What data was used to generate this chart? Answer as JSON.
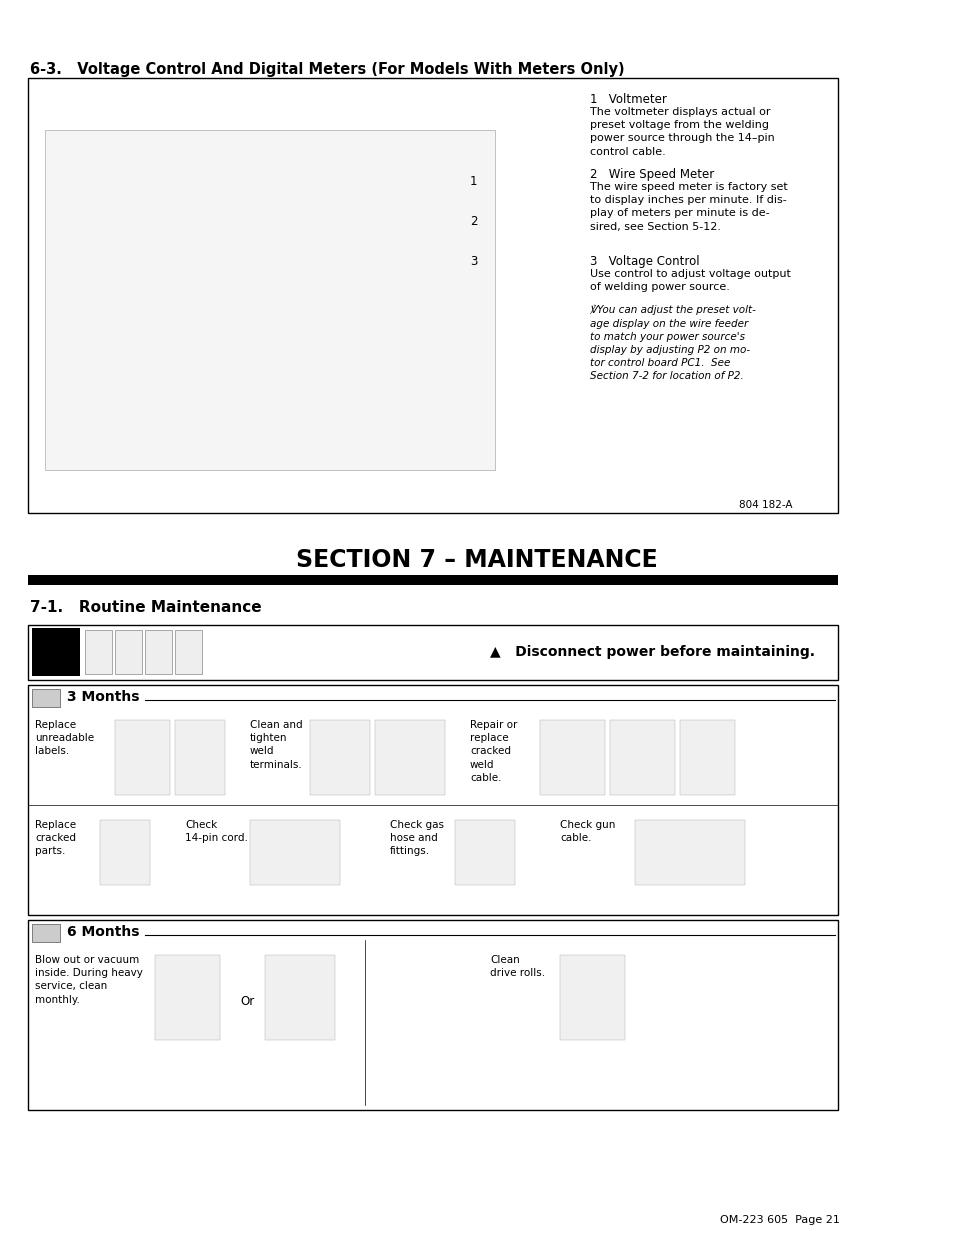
{
  "page_bg": "#ffffff",
  "section63_title": "6-3.   Voltage Control And Digital Meters (For Models With Meters Only)",
  "section7_title": "SECTION 7 – MAINTENANCE",
  "section71_title": "7-1.   Routine Maintenance",
  "figure_note": "804 182-A",
  "page_note": "OM-223 605  Page 21",
  "voltmeter_label": "1   Voltmeter",
  "voltmeter_text": "The voltmeter displays actual or\npreset voltage from the welding\npower source through the 14–pin\ncontrol cable.",
  "wire_speed_label": "2   Wire Speed Meter",
  "wire_speed_text": "The wire speed meter is factory set\nto display inches per minute. If dis-\nplay of meters per minute is de-\nsired, see Section 5-12.",
  "voltage_ctrl_label": "3   Voltage Control",
  "voltage_ctrl_text": "Use control to adjust voltage output\nof welding power source.",
  "italic_note": "℣You can adjust the preset volt-\nage display on the wire feeder\nto match your power source's\ndisplay by adjusting P2 on mo-\ntor control board PC1.  See\nSection 7-2 for location of P2.",
  "warning_text": "▲   Disconnect power before maintaining.",
  "months3_label": "3 Months",
  "months6_label": "6 Months",
  "replace_labels_text": "Replace\nunreadable\nlabels.",
  "clean_tighten_text": "Clean and\ntighten\nweld\nterminals.",
  "repair_replace_text": "Repair or\nreplace\ncracked\nweld\ncable.",
  "replace_cracked_text": "Replace\ncracked\nparts.",
  "check_14pin_text": "Check\n14-pin cord.",
  "check_gas_text": "Check gas\nhose and\nfittings.",
  "check_gun_text": "Check gun\ncable.",
  "blow_vacuum_text": "Blow out or vacuum\ninside. During heavy\nservice, clean\nmonthly.",
  "clean_drive_text": "Clean\ndrive rolls.",
  "or_text": "Or"
}
